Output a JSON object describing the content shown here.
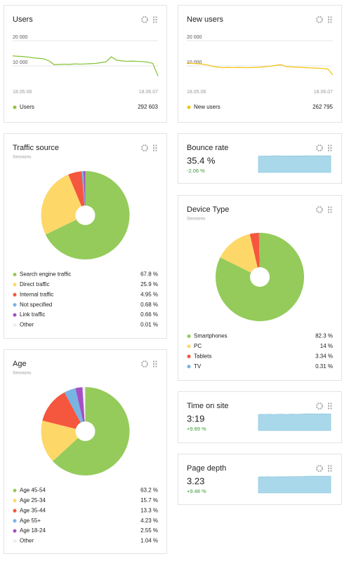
{
  "chart_data": [
    {
      "type": "line",
      "title": "Users",
      "categories": [
        "18.05.08",
        null,
        null,
        null,
        null,
        null,
        null,
        null,
        null,
        null,
        null,
        null,
        null,
        null,
        null,
        null,
        null,
        null,
        null,
        null,
        null,
        null,
        null,
        null,
        null,
        null,
        null,
        null,
        "18.06.07"
      ],
      "ylim": [
        5000,
        20000
      ],
      "yticks": [
        {
          "value": 10000,
          "label": "10 000"
        },
        {
          "value": 20000,
          "label": "20 000"
        }
      ],
      "grid": true,
      "series": [
        {
          "name": "Users",
          "color": "#8cc63f",
          "total": "292 603",
          "values": [
            14000,
            13800,
            13700,
            13500,
            13200,
            13000,
            12800,
            12000,
            10500,
            10600,
            10700,
            10600,
            10800,
            10700,
            10800,
            10900,
            11000,
            11300,
            11600,
            13600,
            12300,
            12000,
            11800,
            11900,
            11800,
            11700,
            11500,
            11000,
            6000
          ]
        }
      ]
    },
    {
      "type": "line",
      "title": "New users",
      "categories": [
        "18.05.08",
        null,
        null,
        null,
        null,
        null,
        null,
        null,
        null,
        null,
        null,
        null,
        null,
        null,
        null,
        null,
        null,
        null,
        null,
        null,
        null,
        null,
        null,
        null,
        null,
        null,
        null,
        null,
        "18.06.07"
      ],
      "ylim": [
        5000,
        20000
      ],
      "yticks": [
        {
          "value": 10000,
          "label": "10 000"
        },
        {
          "value": 20000,
          "label": "20 000"
        }
      ],
      "grid": true,
      "series": [
        {
          "name": "New users",
          "color": "#f5c518",
          "total": "262 795",
          "values": [
            11200,
            11000,
            10900,
            10700,
            10400,
            9800,
            9500,
            9300,
            9400,
            9300,
            9400,
            9300,
            9300,
            9400,
            9500,
            9700,
            9900,
            10200,
            10500,
            9800,
            9600,
            9500,
            9400,
            9300,
            9200,
            9100,
            9000,
            8800,
            6500
          ]
        }
      ]
    },
    {
      "type": "pie",
      "title": "Traffic source",
      "subtitle": "Sessions",
      "categories": [
        "Search engine traffic",
        "Direct traffic",
        "Internal traffic",
        "Not specified",
        "Link traffic",
        "Other"
      ],
      "values": [
        67.8,
        25.9,
        4.95,
        0.68,
        0.66,
        0.01
      ],
      "value_labels": [
        "67.8 %",
        "25.9 %",
        "4.95 %",
        "0.68 %",
        "0.66 %",
        "0.01 %"
      ],
      "colors": [
        "#95cb5b",
        "#fdd868",
        "#f5563e",
        "#79b3e2",
        "#a450c3",
        "#eeeeee"
      ]
    },
    {
      "type": "area",
      "title": "Bounce rate",
      "value_label": "35.4 %",
      "change": "-2.06 %",
      "color": "#a9d8ea",
      "values": [
        35,
        35,
        35.2,
        35.1,
        35.4,
        35.8,
        35.6,
        35.3,
        35.2,
        35.4,
        35.3,
        35.2,
        35.5,
        35.4,
        35.3,
        35.6,
        35.5,
        35.4,
        35.5,
        35.6,
        35.4,
        35.5,
        35.6,
        35.7
      ]
    },
    {
      "type": "pie",
      "title": "Device Type",
      "subtitle": "Sessions",
      "categories": [
        "Smartphones",
        "PC",
        "Tablets",
        "TV"
      ],
      "values": [
        82.3,
        14,
        3.34,
        0.31
      ],
      "value_labels": [
        "82.3 %",
        "14 %",
        "3.34 %",
        "0.31 %"
      ],
      "colors": [
        "#95cb5b",
        "#fdd868",
        "#f5563e",
        "#79b3e2"
      ]
    },
    {
      "type": "pie",
      "title": "Age",
      "subtitle": "Sessions",
      "categories": [
        "Age 45-54",
        "Age 25-34",
        "Age 35-44",
        "Age 55+",
        "Age 18-24",
        "Other"
      ],
      "values": [
        63.2,
        15.7,
        13.3,
        4.23,
        2.55,
        1.04
      ],
      "value_labels": [
        "63.2 %",
        "15.7 %",
        "13.3 %",
        "4.23 %",
        "2.55 %",
        "1.04 %"
      ],
      "colors": [
        "#95cb5b",
        "#fdd868",
        "#f5563e",
        "#79b3e2",
        "#a450c3",
        "#eeeeee"
      ]
    },
    {
      "type": "area",
      "title": "Time on site",
      "value_label": "3:19",
      "change": "+9.89 %",
      "color": "#a9d8ea",
      "values": [
        190,
        191,
        190,
        192,
        191,
        190,
        191,
        192,
        191,
        190,
        192,
        193,
        191,
        192,
        195,
        197,
        196,
        198,
        196,
        195,
        197,
        196,
        195,
        196
      ]
    },
    {
      "type": "area",
      "title": "Page depth",
      "value_label": "3.23",
      "change": "+9.48 %",
      "color": "#a9d8ea",
      "values": [
        3.1,
        3.11,
        3.1,
        3.12,
        3.11,
        3.1,
        3.11,
        3.12,
        3.11,
        3.12,
        3.13,
        3.12,
        3.14,
        3.13,
        3.15,
        3.2,
        3.22,
        3.21,
        3.23,
        3.22,
        3.21,
        3.22,
        3.21,
        3.22
      ]
    }
  ]
}
